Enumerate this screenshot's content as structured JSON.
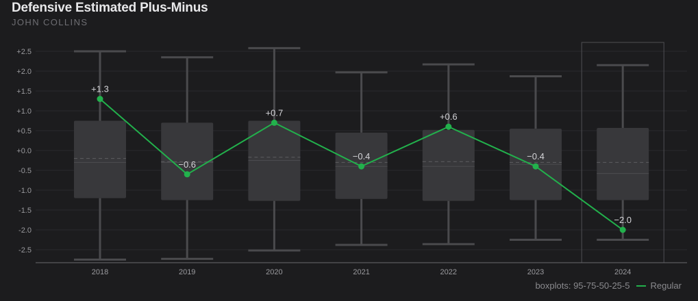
{
  "title": "Defensive Estimated Plus-Minus",
  "subtitle": "JOHN COLLINS",
  "footer": {
    "boxplot_note": "boxplots: 95-75-50-25-5",
    "legend_label": "Regular"
  },
  "colors": {
    "background": "#1c1c1e",
    "box_fill": "#38383b",
    "whisker": "#4a4a4d",
    "series": "#22b14c",
    "grid": "#2a2a2d",
    "text": "#9a9a9e"
  },
  "chart_data": {
    "type": "line",
    "title": "Defensive Estimated Plus-Minus",
    "subtitle": "JOHN COLLINS",
    "categories": [
      "2018",
      "2019",
      "2020",
      "2021",
      "2022",
      "2023",
      "2024"
    ],
    "y_ticks": [
      2.5,
      2.0,
      1.5,
      1.0,
      0.5,
      0.0,
      -0.5,
      -1.0,
      -1.5,
      -2.0,
      -2.5
    ],
    "y_tick_labels": [
      "+2.5",
      "+2.0",
      "+1.5",
      "+1.0",
      "+0.5",
      "+0.0",
      "-0.5",
      "-1.0",
      "-1.5",
      "-2.0",
      "-2.5"
    ],
    "ylim": [
      -2.85,
      2.7
    ],
    "grid": true,
    "highlighted_category": "2024",
    "boxplots": [
      {
        "p95": 2.5,
        "p75": 0.75,
        "p50": -0.3,
        "p25": -1.2,
        "p5": -2.75,
        "mean": -0.2
      },
      {
        "p95": 2.35,
        "p75": 0.7,
        "p50": -0.3,
        "p25": -1.25,
        "p5": -2.73,
        "mean": -0.28
      },
      {
        "p95": 2.58,
        "p75": 0.75,
        "p50": -0.25,
        "p25": -1.27,
        "p5": -2.52,
        "mean": -0.17
      },
      {
        "p95": 1.97,
        "p75": 0.45,
        "p50": -0.4,
        "p25": -1.22,
        "p5": -2.38,
        "mean": -0.3
      },
      {
        "p95": 2.17,
        "p75": 0.52,
        "p50": -0.4,
        "p25": -1.27,
        "p5": -2.36,
        "mean": -0.28
      },
      {
        "p95": 1.87,
        "p75": 0.55,
        "p50": -0.35,
        "p25": -1.25,
        "p5": -2.25,
        "mean": -0.3
      },
      {
        "p95": 2.15,
        "p75": 0.57,
        "p50": -0.58,
        "p25": -1.25,
        "p5": -2.25,
        "mean": -0.3
      }
    ],
    "series": [
      {
        "name": "Regular",
        "values": [
          1.3,
          -0.6,
          0.7,
          -0.4,
          0.6,
          -0.4,
          -2.0
        ],
        "labels": [
          "+1.3",
          "−0.6",
          "+0.7",
          "−0.4",
          "+0.6",
          "−0.4",
          "−2.0"
        ]
      }
    ]
  }
}
